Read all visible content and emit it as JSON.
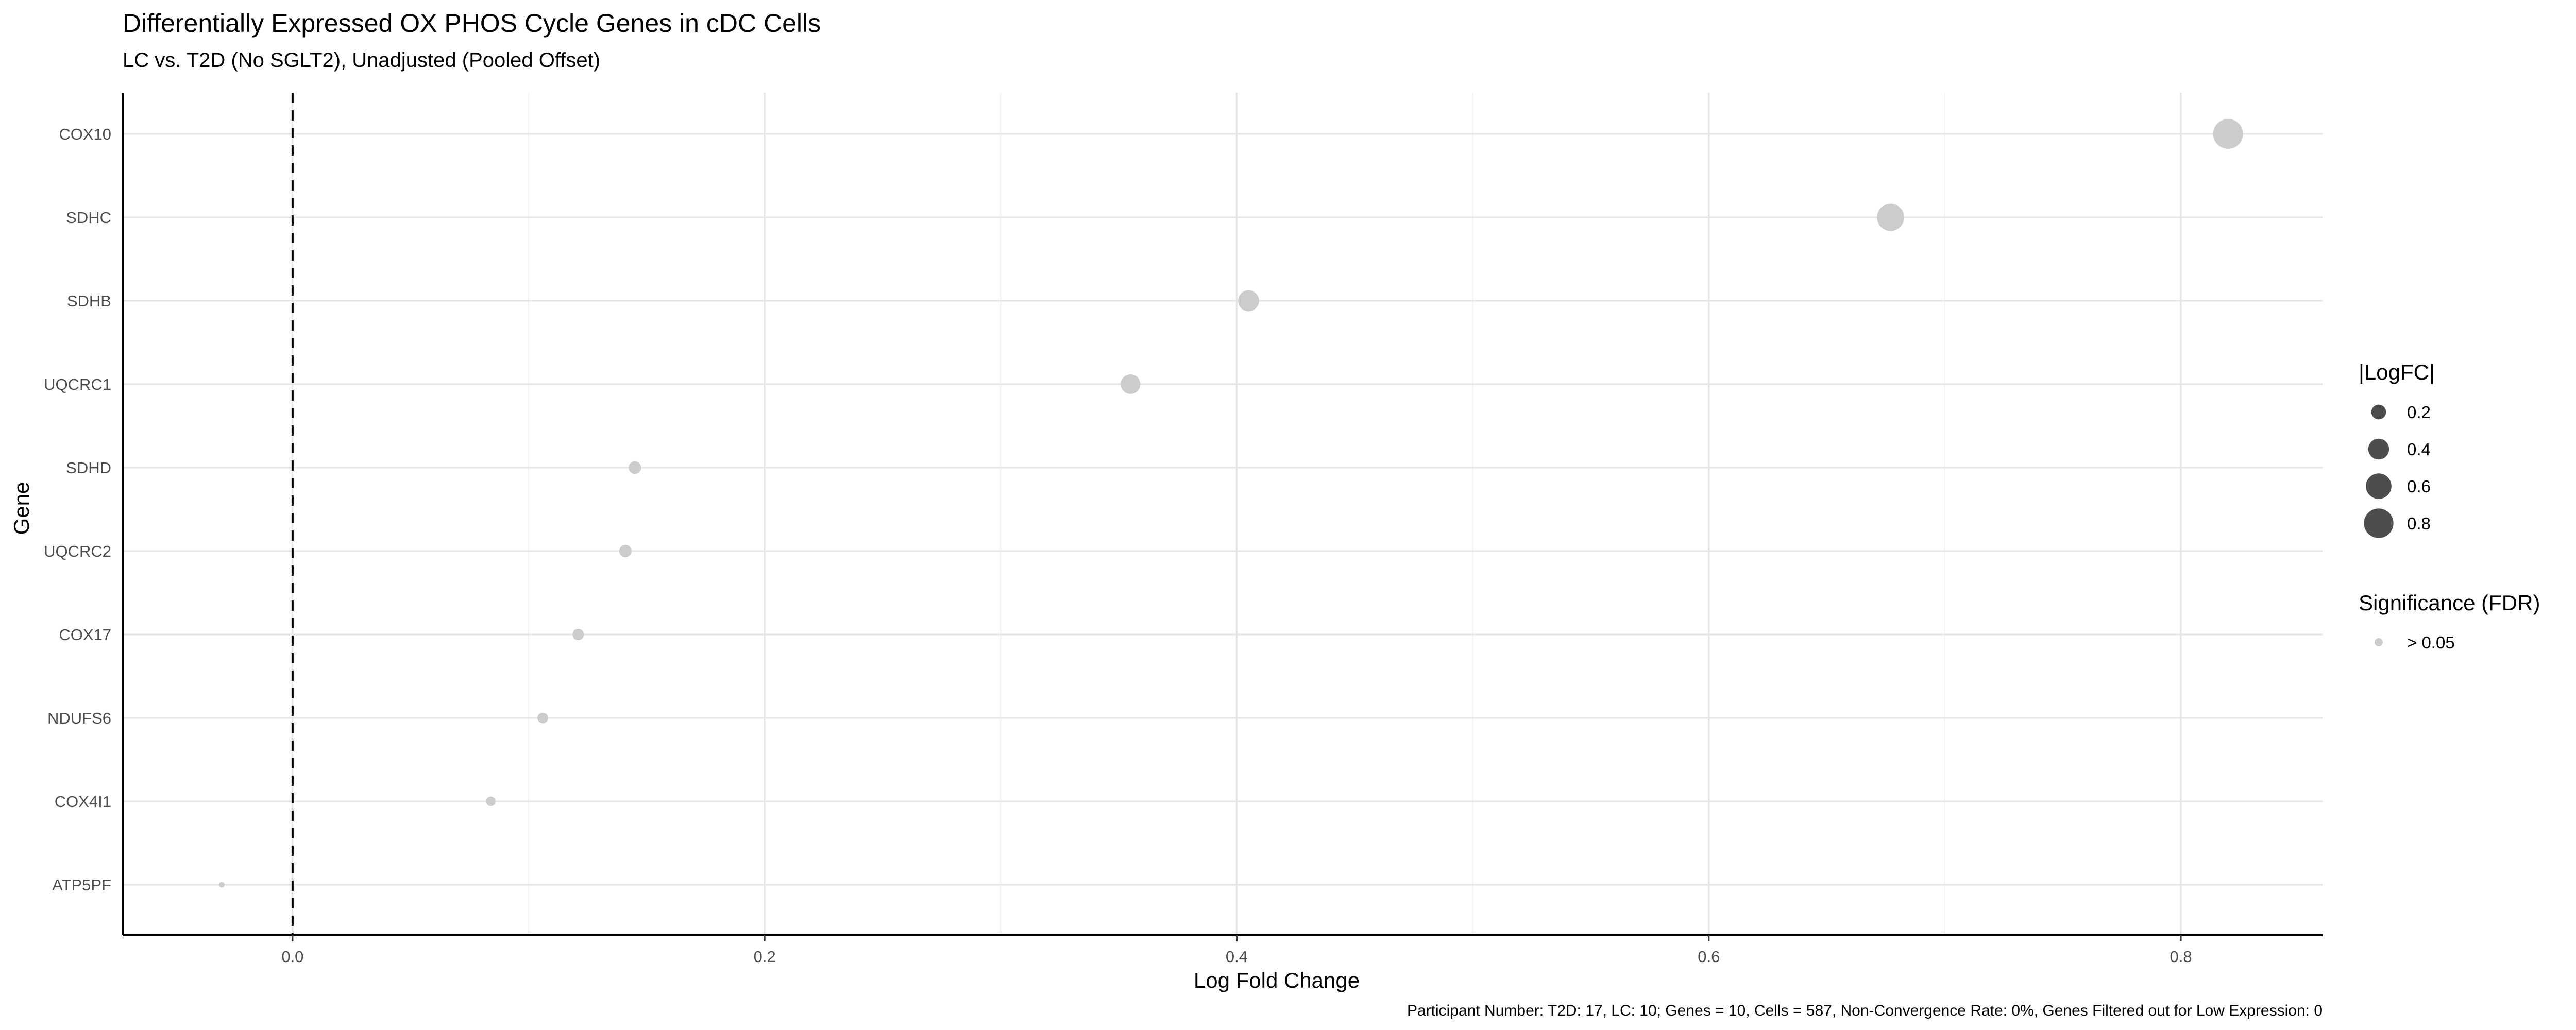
{
  "chart_data": {
    "type": "scatter",
    "title": "Differentially Expressed OX PHOS Cycle Genes in cDC Cells",
    "subtitle": "LC vs. T2D (No SGLT2), Unadjusted (Pooled Offset)",
    "xlabel": "Log Fold Change",
    "ylabel": "Gene",
    "caption": "Participant Number: T2D: 17, LC: 10; Genes = 10, Cells = 587, Non-Convergence Rate: 0%, Genes Filtered out for Low Expression: 0",
    "xlim": [
      -0.072,
      0.86
    ],
    "x_ticks": [
      0.0,
      0.2,
      0.4,
      0.6,
      0.8
    ],
    "x_tick_labels": [
      "0.0",
      "0.2",
      "0.4",
      "0.6",
      "0.8"
    ],
    "reference_line_x": 0,
    "grid": true,
    "legend_position": "right",
    "point_color": "#cccccc",
    "categories": [
      "COX10",
      "SDHC",
      "SDHB",
      "UQCRC1",
      "SDHD",
      "UQCRC2",
      "COX17",
      "NDUFS6",
      "COX4I1",
      "ATP5PF"
    ],
    "points": [
      {
        "gene": "COX10",
        "x": 0.82
      },
      {
        "gene": "SDHC",
        "x": 0.677
      },
      {
        "gene": "SDHB",
        "x": 0.405
      },
      {
        "gene": "UQCRC1",
        "x": 0.355
      },
      {
        "gene": "SDHD",
        "x": 0.145
      },
      {
        "gene": "UQCRC2",
        "x": 0.141
      },
      {
        "gene": "COX17",
        "x": 0.121
      },
      {
        "gene": "NDUFS6",
        "x": 0.106
      },
      {
        "gene": "COX4I1",
        "x": 0.084
      },
      {
        "gene": "ATP5PF",
        "x": -0.03
      }
    ],
    "legend_size": {
      "title": "|LogFC|",
      "values": [
        0.2,
        0.4,
        0.6,
        0.8
      ],
      "labels": [
        "0.2",
        "0.4",
        "0.6",
        "0.8"
      ],
      "color": "#4d4d4d"
    },
    "legend_color": {
      "title": "Significance (FDR)",
      "entries": [
        {
          "label": "> 0.05",
          "color": "#cccccc"
        }
      ]
    }
  }
}
